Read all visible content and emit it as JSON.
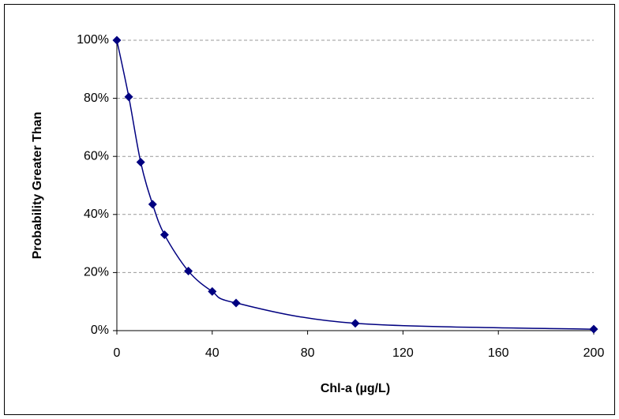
{
  "chart_data": {
    "type": "line",
    "x_label": "Chl-a (µg/L)",
    "y_label": "Probability Greater Than",
    "x": [
      0,
      5,
      10,
      15,
      20,
      30,
      40,
      50,
      100,
      200
    ],
    "series": [
      {
        "color": "#000080",
        "values": [
          100,
          80.5,
          58,
          43.5,
          33,
          20.5,
          13.5,
          9.5,
          2.5,
          0.5
        ]
      }
    ],
    "xlim": [
      0,
      200
    ],
    "xticks": [
      0,
      40,
      80,
      120,
      160,
      200
    ],
    "ylim": [
      0,
      100
    ],
    "yticks": [
      {
        "value": 0,
        "label": "0%"
      },
      {
        "value": 20,
        "label": "20%"
      },
      {
        "value": 40,
        "label": "40%"
      },
      {
        "value": 60,
        "label": "60%"
      },
      {
        "value": 80,
        "label": "80%"
      },
      {
        "value": 100,
        "label": "100%"
      }
    ],
    "grid": true,
    "marker": "diamond"
  }
}
